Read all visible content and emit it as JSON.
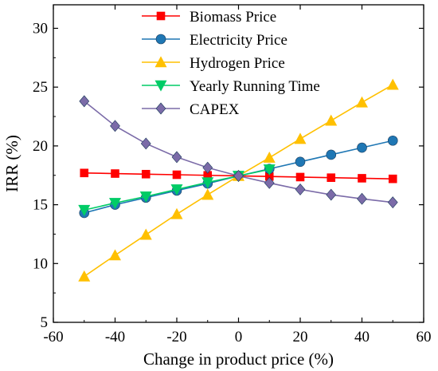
{
  "chart_data": {
    "type": "line",
    "title": "",
    "xlabel": "Change in product price (%)",
    "ylabel": "IRR (%)",
    "xlim": [
      -60,
      60
    ],
    "ylim": [
      5,
      32
    ],
    "x_ticks": [
      -60,
      -40,
      -20,
      0,
      20,
      40,
      60
    ],
    "y_ticks": [
      5,
      10,
      15,
      20,
      25,
      30
    ],
    "grid": false,
    "legend_position": "top-center",
    "x": [
      -50,
      -40,
      -30,
      -20,
      -10,
      0,
      10,
      20,
      30,
      40,
      50
    ],
    "series": [
      {
        "name": "Biomass Price",
        "color": "#ff0000",
        "marker": "square",
        "x": [
          -50,
          -40,
          -30,
          -20,
          -10,
          0,
          10,
          20,
          30,
          40,
          50
        ],
        "values": [
          17.7,
          17.65,
          17.6,
          17.55,
          17.5,
          17.45,
          17.4,
          17.35,
          17.3,
          17.25,
          17.2
        ]
      },
      {
        "name": "Electricity Price",
        "color": "#1f77b4",
        "marker": "circle",
        "x": [
          -50,
          -40,
          -30,
          -20,
          -10,
          0,
          10,
          20,
          30,
          40,
          50
        ],
        "values": [
          14.3,
          15.0,
          15.6,
          16.2,
          16.8,
          17.45,
          18.05,
          18.65,
          19.25,
          19.85,
          20.45
        ]
      },
      {
        "name": "Hydrogen Price",
        "color": "#ffc000",
        "marker": "triangle-up",
        "x": [
          -50,
          -40,
          -30,
          -20,
          -10,
          0,
          10,
          20,
          30,
          40,
          50
        ],
        "values": [
          8.9,
          10.7,
          12.45,
          14.2,
          15.85,
          17.45,
          19.0,
          20.6,
          22.15,
          23.7,
          25.2
        ]
      },
      {
        "name": "Yearly Running Time",
        "color": "#00cc66",
        "marker": "triangle-down",
        "x": [
          -50,
          -10,
          -40,
          -30,
          -20,
          0,
          10
        ],
        "values": [
          14.55,
          16.9,
          15.15,
          15.7,
          16.3,
          17.45,
          18.0
        ]
      },
      {
        "name": "CAPEX",
        "color": "#7b6ba8",
        "marker": "diamond",
        "x": [
          -50,
          -40,
          -30,
          -20,
          -10,
          0,
          10,
          20,
          30,
          40,
          50
        ],
        "values": [
          23.8,
          21.7,
          20.2,
          19.05,
          18.15,
          17.45,
          16.85,
          16.3,
          15.85,
          15.5,
          15.2
        ]
      }
    ]
  }
}
